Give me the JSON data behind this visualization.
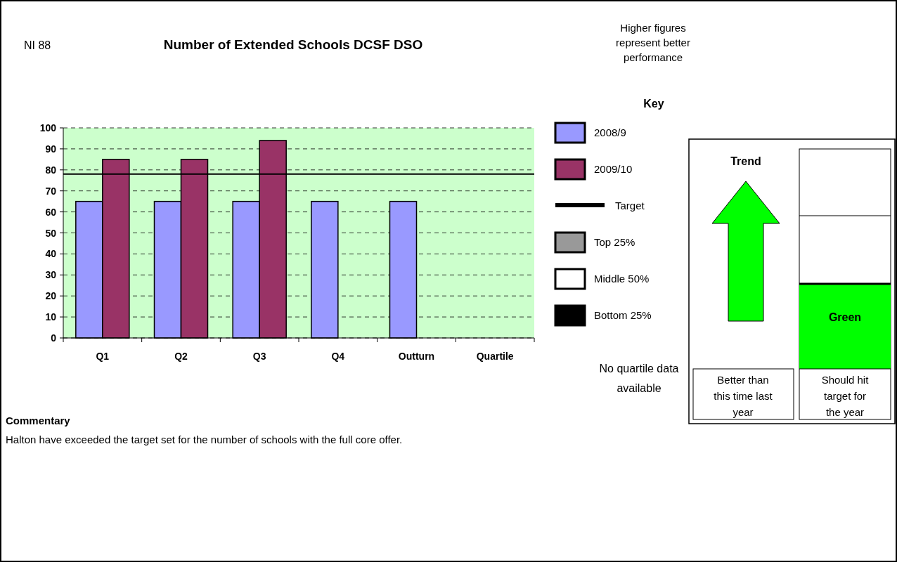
{
  "chart_data": {
    "type": "bar",
    "title": "Number of Extended Schools DCSF DSO",
    "categories": [
      "Q1",
      "Q2",
      "Q3",
      "Q4",
      "Outturn",
      "Quartile"
    ],
    "series": [
      {
        "name": "2008/9",
        "color": "#9999ff",
        "values": [
          65,
          65,
          65,
          65,
          65,
          null
        ]
      },
      {
        "name": "2009/10",
        "color": "#993366",
        "values": [
          85,
          85,
          94,
          null,
          null,
          null
        ]
      },
      {
        "name": "Top 25%",
        "color": "#999999",
        "values": [
          null,
          null,
          null,
          null,
          null,
          null
        ]
      },
      {
        "name": "Middle 50%",
        "color": "#ffffff",
        "values": [
          null,
          null,
          null,
          null,
          null,
          null
        ]
      },
      {
        "name": "Bottom 25%",
        "color": "#000000",
        "values": [
          null,
          null,
          null,
          null,
          null,
          null
        ]
      }
    ],
    "ylim": [
      0,
      100
    ],
    "yticks": [
      0,
      10,
      20,
      30,
      40,
      50,
      60,
      70,
      80,
      90,
      100
    ],
    "grid": "y",
    "legend": "right",
    "legend_title": "Key",
    "ref_lines": [
      {
        "axis": "y",
        "value": 78,
        "label": "Target",
        "color": "#000000",
        "line_style": "solid"
      }
    ],
    "annotations": [
      "NI 88",
      "Higher figures represent better performance",
      "No quartile data available",
      "Commentary",
      "Halton have exceeded the target set for the number of schools with the full core offer.",
      "Trend",
      "Green",
      "Better than this time last year",
      "Should hit target for the year"
    ]
  }
}
